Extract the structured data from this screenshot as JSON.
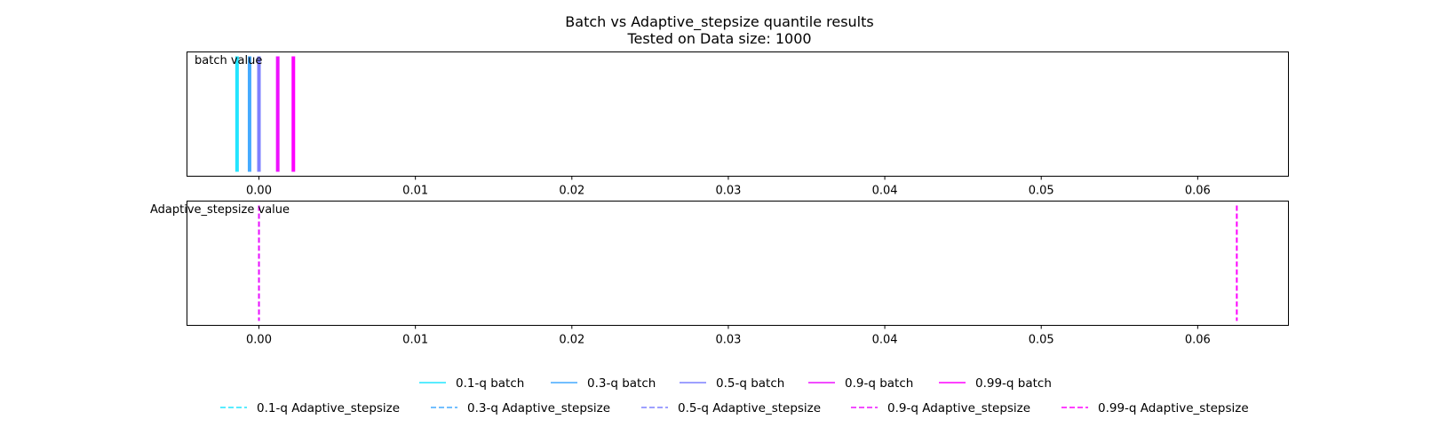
{
  "chart_data": {
    "type": "line",
    "title": "Batch vs Adaptive_stepsize quantile results",
    "subtitle": "Tested on Data size: 1000",
    "xlim": [
      -0.0046,
      0.0658
    ],
    "xticks": [
      "0.00",
      "0.01",
      "0.02",
      "0.03",
      "0.04",
      "0.05",
      "0.06"
    ],
    "xtick_values": [
      0.0,
      0.01,
      0.02,
      0.03,
      0.04,
      0.05,
      0.06
    ],
    "grid": false,
    "legend_position": "bottom",
    "panels": [
      {
        "ylabel": "batch value",
        "style": "solid",
        "series": [
          {
            "name": "0.1-q batch",
            "value": -0.0014,
            "color": "#22e5ff"
          },
          {
            "name": "0.3-q batch",
            "value": -0.0006,
            "color": "#44aaff"
          },
          {
            "name": "0.5-q batch",
            "value": 0.0,
            "color": "#7f80ff"
          },
          {
            "name": "0.9-q batch",
            "value": 0.0012,
            "color": "#ee11ff"
          },
          {
            "name": "0.99-q batch",
            "value": 0.0022,
            "color": "#ff00ff"
          }
        ]
      },
      {
        "ylabel": "Adaptive_stepsize value",
        "style": "dashed",
        "series": [
          {
            "name": "0.1-q Adaptive_stepsize",
            "value": 0.0,
            "color": "#22e5ff"
          },
          {
            "name": "0.3-q Adaptive_stepsize",
            "value": 0.0,
            "color": "#44aaff"
          },
          {
            "name": "0.5-q Adaptive_stepsize",
            "value": 0.0,
            "color": "#7f80ff"
          },
          {
            "name": "0.9-q Adaptive_stepsize",
            "value": 0.0,
            "color": "#ee11ff"
          },
          {
            "name": "0.99-q Adaptive_stepsize",
            "value": 0.0625,
            "color": "#ff00ff"
          }
        ]
      }
    ]
  }
}
